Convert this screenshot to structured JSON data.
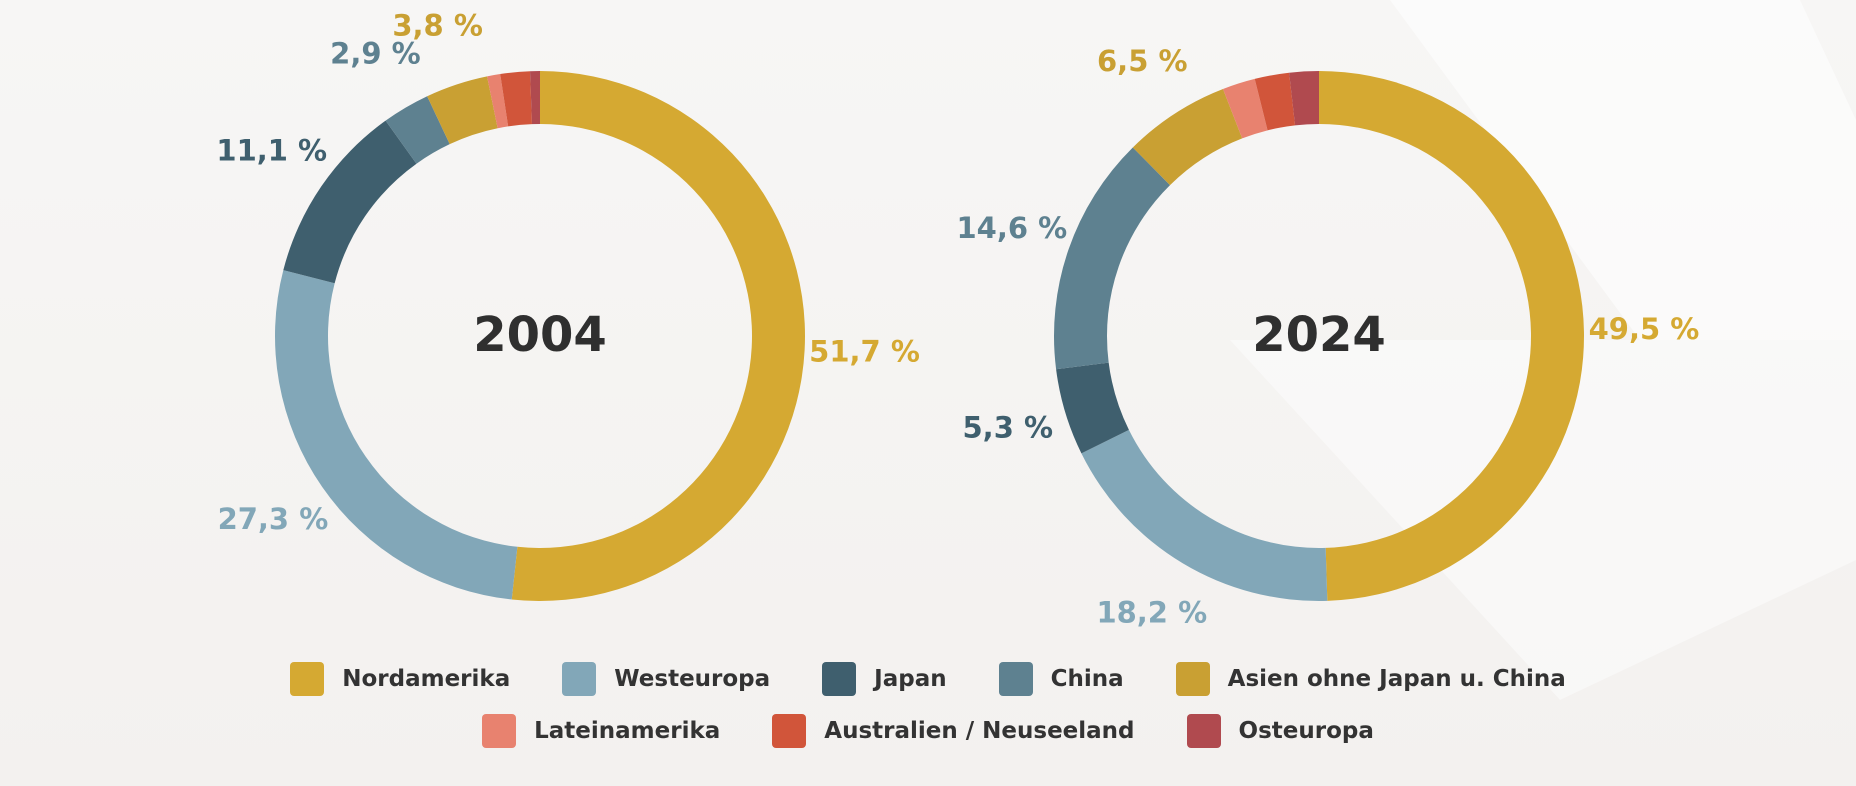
{
  "chart_data": {
    "type": "donut",
    "categories": [
      "Nordamerika",
      "Westeuropa",
      "Japan",
      "China",
      "Asien ohne Japan u. China",
      "Lateinamerika",
      "Australien / Neuseeland",
      "Osteuropa"
    ],
    "colors": [
      "#d5a932",
      "#82a7b8",
      "#3f5f6e",
      "#5e8190",
      "#c9a033",
      "#e8826f",
      "#d1553a",
      "#b04a4f"
    ],
    "charts": [
      {
        "center_label": "2004",
        "values": [
          51.7,
          27.3,
          11.1,
          2.9,
          3.8,
          0.8,
          1.8,
          0.6
        ],
        "labels": [
          "51,7 %",
          "27,3 %",
          "11,1 %",
          "2,9 %",
          "3,8 %",
          "",
          "",
          ""
        ]
      },
      {
        "center_label": "2024",
        "values": [
          49.5,
          18.2,
          5.3,
          14.6,
          6.5,
          2.0,
          2.1,
          1.8
        ],
        "labels": [
          "49,5 %",
          "18,2 %",
          "5,3 %",
          "14,6 %",
          "6,5 %",
          "",
          "",
          ""
        ]
      }
    ]
  }
}
